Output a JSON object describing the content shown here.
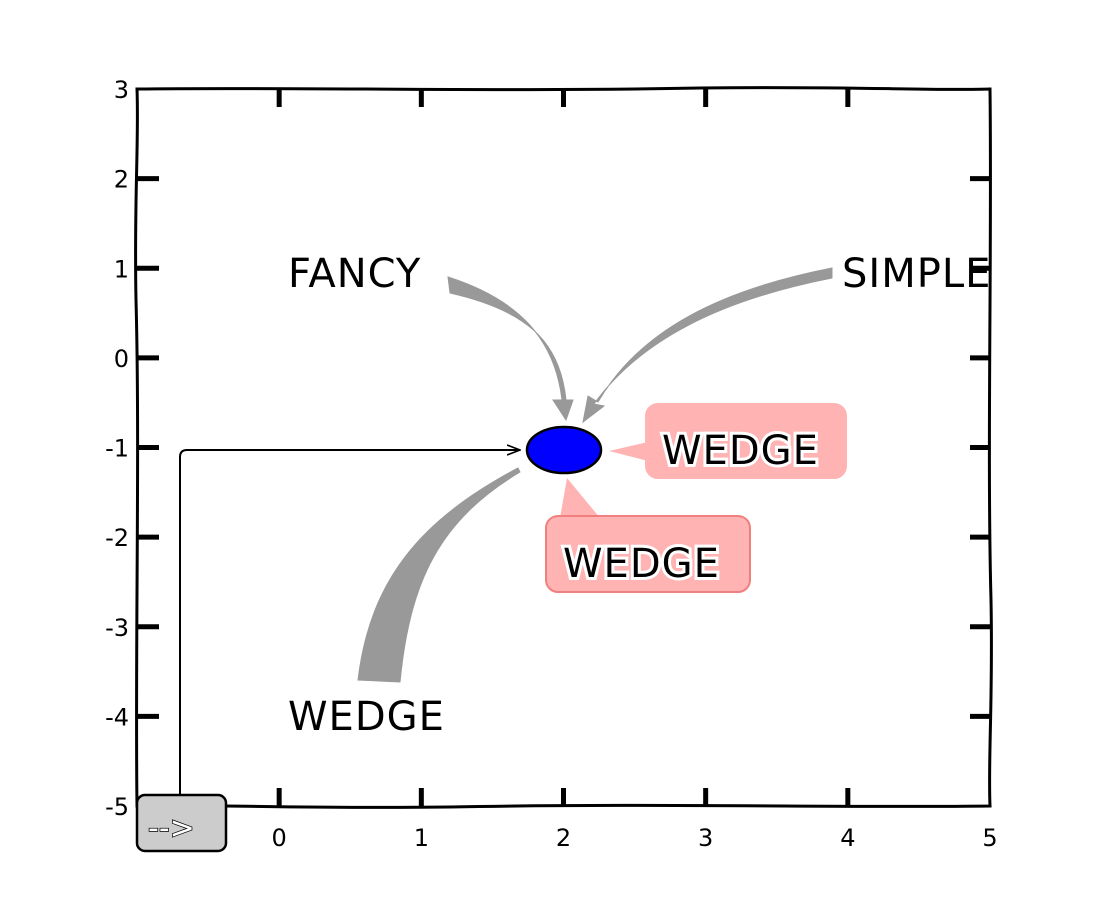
{
  "chart_data": {
    "type": "scatter",
    "title": "",
    "xlabel": "",
    "ylabel": "",
    "xlim": [
      -1,
      5
    ],
    "ylim": [
      -5,
      3
    ],
    "xticks": [
      "0",
      "1",
      "2",
      "3",
      "4",
      "5"
    ],
    "yticks": [
      "3",
      "2",
      "1",
      "0",
      "-1",
      "-2",
      "-3",
      "-4",
      "-5"
    ],
    "grid": false,
    "style": "xkcd",
    "points": [
      {
        "name": "ellipse",
        "x": 2,
        "y": -1,
        "width": 0.5,
        "height": 0.35,
        "color": "#0000ff"
      }
    ],
    "annotations": [
      {
        "text": "FANCY",
        "xytext": [
          0.4,
          1
        ],
        "xy": [
          2,
          -0.75
        ],
        "arrowstyle": "fancy",
        "box": "none"
      },
      {
        "text": "SIMPLE",
        "xytext": [
          4.7,
          1
        ],
        "xy": [
          2.2,
          -0.75
        ],
        "arrowstyle": "simple",
        "box": "none"
      },
      {
        "text": "WEDGE",
        "xytext": [
          3.3,
          -1
        ],
        "xy": [
          2.3,
          -1
        ],
        "arrowstyle": "wedge",
        "box": "round",
        "boxcolor": "#ffb3b3"
      },
      {
        "text": "WEDGE",
        "xytext": [
          2.6,
          -2.2
        ],
        "xy": [
          2,
          -1.3
        ],
        "arrowstyle": "wedge",
        "box": "round",
        "boxcolor": "#ffb3b3"
      },
      {
        "text": "WEDGE",
        "xytext": [
          0.6,
          -4
        ],
        "xy": [
          1.7,
          -1.2
        ],
        "arrowstyle": "wedge",
        "box": "none"
      },
      {
        "text": "-->",
        "xytext": [
          -1,
          -5
        ],
        "xy": [
          1.7,
          -1
        ],
        "arrowstyle": "angle",
        "box": "round",
        "boxcolor": "#cccccc"
      }
    ]
  }
}
